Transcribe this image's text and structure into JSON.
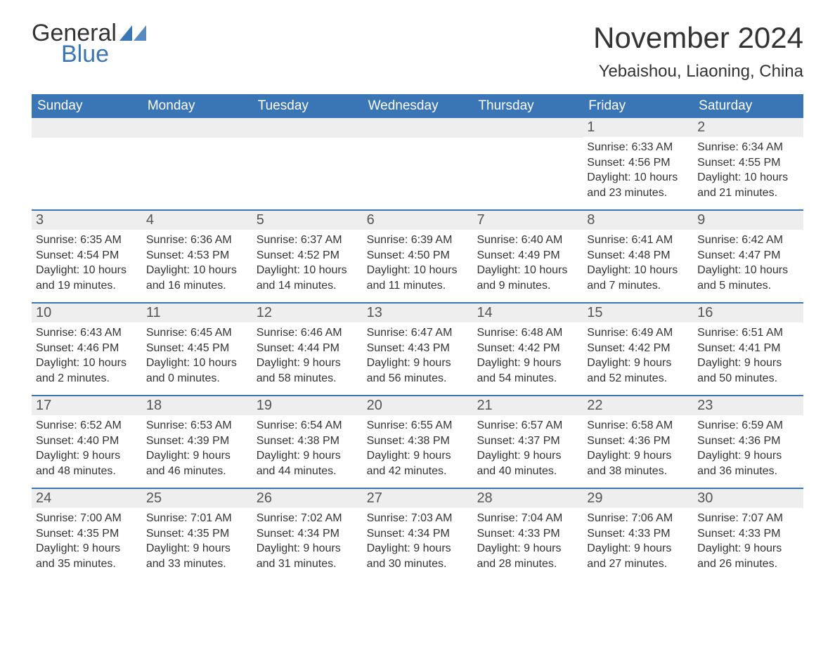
{
  "logo": {
    "text_general": "General",
    "text_blue": "Blue",
    "icon_color": "#3a75b5"
  },
  "title": "November 2024",
  "subtitle": "Yebaishou, Liaoning, China",
  "header_bg": "#3a75b5",
  "header_fg": "#ffffff",
  "daynum_bg": "#eeeeee",
  "border_color": "#3a75b5",
  "day_names": [
    "Sunday",
    "Monday",
    "Tuesday",
    "Wednesday",
    "Thursday",
    "Friday",
    "Saturday"
  ],
  "weeks": [
    [
      null,
      null,
      null,
      null,
      null,
      {
        "num": "1",
        "sunrise": "Sunrise: 6:33 AM",
        "sunset": "Sunset: 4:56 PM",
        "daylight": "Daylight: 10 hours and 23 minutes."
      },
      {
        "num": "2",
        "sunrise": "Sunrise: 6:34 AM",
        "sunset": "Sunset: 4:55 PM",
        "daylight": "Daylight: 10 hours and 21 minutes."
      }
    ],
    [
      {
        "num": "3",
        "sunrise": "Sunrise: 6:35 AM",
        "sunset": "Sunset: 4:54 PM",
        "daylight": "Daylight: 10 hours and 19 minutes."
      },
      {
        "num": "4",
        "sunrise": "Sunrise: 6:36 AM",
        "sunset": "Sunset: 4:53 PM",
        "daylight": "Daylight: 10 hours and 16 minutes."
      },
      {
        "num": "5",
        "sunrise": "Sunrise: 6:37 AM",
        "sunset": "Sunset: 4:52 PM",
        "daylight": "Daylight: 10 hours and 14 minutes."
      },
      {
        "num": "6",
        "sunrise": "Sunrise: 6:39 AM",
        "sunset": "Sunset: 4:50 PM",
        "daylight": "Daylight: 10 hours and 11 minutes."
      },
      {
        "num": "7",
        "sunrise": "Sunrise: 6:40 AM",
        "sunset": "Sunset: 4:49 PM",
        "daylight": "Daylight: 10 hours and 9 minutes."
      },
      {
        "num": "8",
        "sunrise": "Sunrise: 6:41 AM",
        "sunset": "Sunset: 4:48 PM",
        "daylight": "Daylight: 10 hours and 7 minutes."
      },
      {
        "num": "9",
        "sunrise": "Sunrise: 6:42 AM",
        "sunset": "Sunset: 4:47 PM",
        "daylight": "Daylight: 10 hours and 5 minutes."
      }
    ],
    [
      {
        "num": "10",
        "sunrise": "Sunrise: 6:43 AM",
        "sunset": "Sunset: 4:46 PM",
        "daylight": "Daylight: 10 hours and 2 minutes."
      },
      {
        "num": "11",
        "sunrise": "Sunrise: 6:45 AM",
        "sunset": "Sunset: 4:45 PM",
        "daylight": "Daylight: 10 hours and 0 minutes."
      },
      {
        "num": "12",
        "sunrise": "Sunrise: 6:46 AM",
        "sunset": "Sunset: 4:44 PM",
        "daylight": "Daylight: 9 hours and 58 minutes."
      },
      {
        "num": "13",
        "sunrise": "Sunrise: 6:47 AM",
        "sunset": "Sunset: 4:43 PM",
        "daylight": "Daylight: 9 hours and 56 minutes."
      },
      {
        "num": "14",
        "sunrise": "Sunrise: 6:48 AM",
        "sunset": "Sunset: 4:42 PM",
        "daylight": "Daylight: 9 hours and 54 minutes."
      },
      {
        "num": "15",
        "sunrise": "Sunrise: 6:49 AM",
        "sunset": "Sunset: 4:42 PM",
        "daylight": "Daylight: 9 hours and 52 minutes."
      },
      {
        "num": "16",
        "sunrise": "Sunrise: 6:51 AM",
        "sunset": "Sunset: 4:41 PM",
        "daylight": "Daylight: 9 hours and 50 minutes."
      }
    ],
    [
      {
        "num": "17",
        "sunrise": "Sunrise: 6:52 AM",
        "sunset": "Sunset: 4:40 PM",
        "daylight": "Daylight: 9 hours and 48 minutes."
      },
      {
        "num": "18",
        "sunrise": "Sunrise: 6:53 AM",
        "sunset": "Sunset: 4:39 PM",
        "daylight": "Daylight: 9 hours and 46 minutes."
      },
      {
        "num": "19",
        "sunrise": "Sunrise: 6:54 AM",
        "sunset": "Sunset: 4:38 PM",
        "daylight": "Daylight: 9 hours and 44 minutes."
      },
      {
        "num": "20",
        "sunrise": "Sunrise: 6:55 AM",
        "sunset": "Sunset: 4:38 PM",
        "daylight": "Daylight: 9 hours and 42 minutes."
      },
      {
        "num": "21",
        "sunrise": "Sunrise: 6:57 AM",
        "sunset": "Sunset: 4:37 PM",
        "daylight": "Daylight: 9 hours and 40 minutes."
      },
      {
        "num": "22",
        "sunrise": "Sunrise: 6:58 AM",
        "sunset": "Sunset: 4:36 PM",
        "daylight": "Daylight: 9 hours and 38 minutes."
      },
      {
        "num": "23",
        "sunrise": "Sunrise: 6:59 AM",
        "sunset": "Sunset: 4:36 PM",
        "daylight": "Daylight: 9 hours and 36 minutes."
      }
    ],
    [
      {
        "num": "24",
        "sunrise": "Sunrise: 7:00 AM",
        "sunset": "Sunset: 4:35 PM",
        "daylight": "Daylight: 9 hours and 35 minutes."
      },
      {
        "num": "25",
        "sunrise": "Sunrise: 7:01 AM",
        "sunset": "Sunset: 4:35 PM",
        "daylight": "Daylight: 9 hours and 33 minutes."
      },
      {
        "num": "26",
        "sunrise": "Sunrise: 7:02 AM",
        "sunset": "Sunset: 4:34 PM",
        "daylight": "Daylight: 9 hours and 31 minutes."
      },
      {
        "num": "27",
        "sunrise": "Sunrise: 7:03 AM",
        "sunset": "Sunset: 4:34 PM",
        "daylight": "Daylight: 9 hours and 30 minutes."
      },
      {
        "num": "28",
        "sunrise": "Sunrise: 7:04 AM",
        "sunset": "Sunset: 4:33 PM",
        "daylight": "Daylight: 9 hours and 28 minutes."
      },
      {
        "num": "29",
        "sunrise": "Sunrise: 7:06 AM",
        "sunset": "Sunset: 4:33 PM",
        "daylight": "Daylight: 9 hours and 27 minutes."
      },
      {
        "num": "30",
        "sunrise": "Sunrise: 7:07 AM",
        "sunset": "Sunset: 4:33 PM",
        "daylight": "Daylight: 9 hours and 26 minutes."
      }
    ]
  ]
}
